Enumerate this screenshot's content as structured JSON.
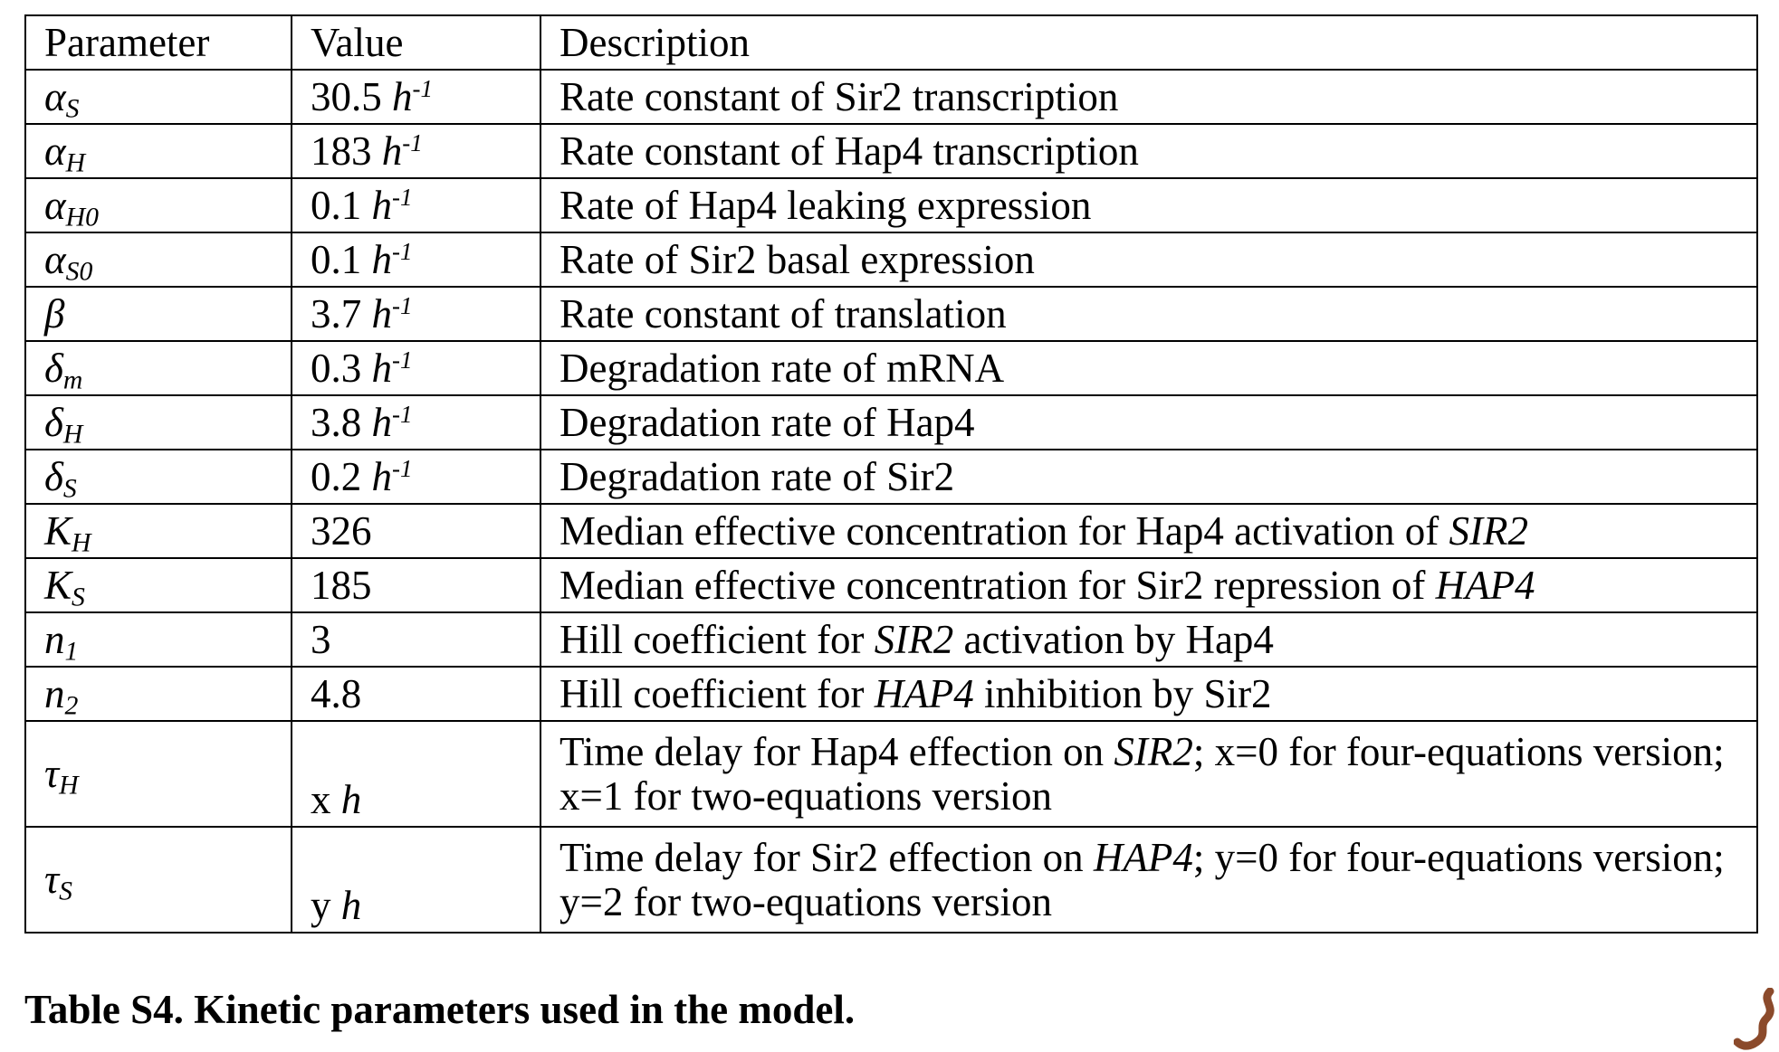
{
  "table": {
    "headers": [
      "Parameter",
      "Value",
      "Description"
    ],
    "rows": [
      {
        "symbol": "α",
        "subscript": "S",
        "value": "30.5",
        "unit": "h",
        "unit_exp": "-1",
        "description": [
          "Rate constant of Sir2 transcription"
        ]
      },
      {
        "symbol": "α",
        "subscript": "H",
        "value": "183",
        "unit": "h",
        "unit_exp": "-1",
        "description": [
          "Rate constant of Hap4 transcription"
        ]
      },
      {
        "symbol": "α",
        "subscript": "H0",
        "value": "0.1",
        "unit": "h",
        "unit_exp": "-1",
        "description": [
          "Rate of Hap4 leaking expression"
        ]
      },
      {
        "symbol": "α",
        "subscript": "S0",
        "value": "0.1",
        "unit": "h",
        "unit_exp": "-1",
        "description": [
          "Rate of Sir2 basal expression"
        ]
      },
      {
        "symbol": "β",
        "subscript": "",
        "value": "3.7",
        "unit": "h",
        "unit_exp": "-1",
        "description": [
          "Rate constant of translation"
        ]
      },
      {
        "symbol": "δ",
        "subscript": "m",
        "value": "0.3",
        "unit": "h",
        "unit_exp": "-1",
        "description": [
          "Degradation rate of mRNA"
        ]
      },
      {
        "symbol": "δ",
        "subscript": "H",
        "value": "3.8",
        "unit": "h",
        "unit_exp": "-1",
        "description": [
          "Degradation rate of Hap4"
        ]
      },
      {
        "symbol": "δ",
        "subscript": "S",
        "value": "0.2",
        "unit": "h",
        "unit_exp": "-1",
        "description": [
          "Degradation rate of Sir2"
        ]
      },
      {
        "symbol": "K",
        "subscript": "H",
        "value": "326",
        "unit": "",
        "unit_exp": "",
        "description": [
          "Median effective concentration for Hap4 activation of ",
          "SIR2",
          ""
        ]
      },
      {
        "symbol": "K",
        "subscript": "S",
        "value": "185",
        "unit": "",
        "unit_exp": "",
        "description": [
          "Median effective concentration for Sir2 repression of ",
          "HAP4",
          ""
        ]
      },
      {
        "symbol": "n",
        "subscript": "1",
        "value": "3",
        "unit": "",
        "unit_exp": "",
        "description": [
          "Hill coefficient for ",
          "SIR2",
          " activation by Hap4"
        ]
      },
      {
        "symbol": "n",
        "subscript": "2",
        "value": "4.8",
        "unit": "",
        "unit_exp": "",
        "description": [
          "Hill coefficient for ",
          "HAP4",
          " inhibition by Sir2"
        ]
      },
      {
        "symbol": "τ",
        "subscript": "H",
        "value": "x",
        "unit": "h",
        "unit_exp": "",
        "description": [
          "Time delay for Hap4 effection on ",
          "SIR2",
          "; x=0 for four-equations version; x=1 for two-equations version"
        ]
      },
      {
        "symbol": "τ",
        "subscript": "S",
        "value": "y",
        "unit": "h",
        "unit_exp": "",
        "description": [
          "Time delay for Sir2 effection on ",
          "HAP4",
          "; y=0 for four-equations version; y=2 for two-equations version"
        ]
      }
    ]
  },
  "caption": "Table S4. Kinetic parameters used in the model.",
  "decoration": {
    "color": "#8b4a2b",
    "icon": "brown-squiggle-mark"
  }
}
